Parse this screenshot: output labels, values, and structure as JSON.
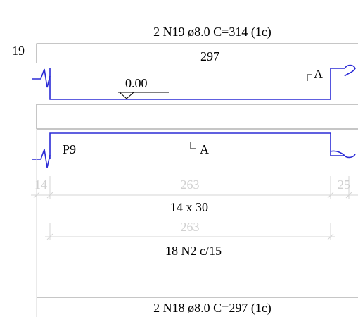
{
  "labels": {
    "top_bar": "2 N19 ø8.0 C=314  (1c)",
    "top_hook": "19",
    "top_straight": "297",
    "level": "0.00",
    "section_a_top": "A",
    "section_a_bottom": "A",
    "support": "P9",
    "section_size": "14 x 30",
    "stirrups": "18 N2 c/15",
    "bottom_bar": "2 N18 ø8.0 C=297  (1c)"
  },
  "dimensions": {
    "left_support": "14",
    "clear_span": "263",
    "right_support": "25",
    "stirrup_span": "263"
  },
  "colors": {
    "beam_outline": "#2b2bd6",
    "structure_line": "#8c8c8c",
    "dimension_line": "#d6d6d6",
    "text": "#000000"
  }
}
